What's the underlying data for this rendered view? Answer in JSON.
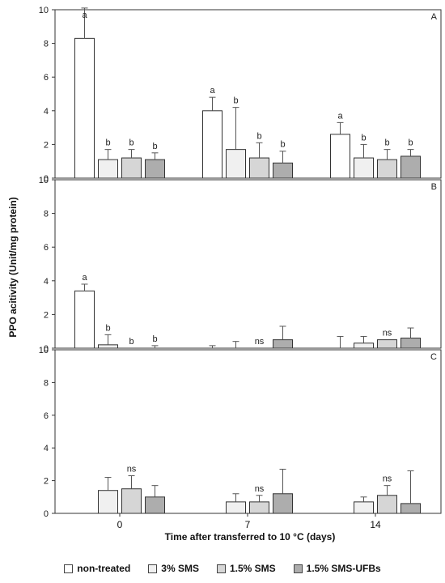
{
  "chart_data": {
    "type": "bar",
    "xlabel": "Time after transferred to 10 °C (days)",
    "ylabel": "PPO acitivity (Unit/mg protein)",
    "categories": [
      "0",
      "7",
      "14"
    ],
    "ylim": [
      0,
      10
    ],
    "yticks": [
      0,
      2,
      4,
      6,
      8,
      10
    ],
    "legend_position": "bottom",
    "series": [
      {
        "name": "non-treated",
        "color": "#ffffff"
      },
      {
        "name": "3% SMS",
        "color": "#f0f0f0"
      },
      {
        "name": "1.5% SMS",
        "color": "#d6d6d6"
      },
      {
        "name": "1.5% SMS-UFBs",
        "color": "#adadad"
      }
    ],
    "panels": [
      {
        "label": "A",
        "values": [
          [
            8.3,
            4.0,
            2.6
          ],
          [
            1.1,
            1.7,
            1.2
          ],
          [
            1.2,
            1.2,
            1.1
          ],
          [
            1.1,
            0.9,
            1.3
          ]
        ],
        "errors": [
          [
            1.8,
            0.8,
            0.7
          ],
          [
            0.6,
            2.5,
            0.8
          ],
          [
            0.5,
            0.9,
            0.6
          ],
          [
            0.4,
            0.7,
            0.4
          ]
        ],
        "significance": [
          [
            "a",
            "a",
            "a"
          ],
          [
            "b",
            "b",
            "b"
          ],
          [
            "b",
            "b",
            "b"
          ],
          [
            "b",
            "b",
            "b"
          ]
        ]
      },
      {
        "label": "B",
        "values": [
          [
            3.4,
            0.0,
            0.0
          ],
          [
            0.2,
            0.0,
            0.3
          ],
          [
            0.0,
            0.0,
            0.5
          ],
          [
            0.0,
            0.5,
            0.6
          ]
        ],
        "errors": [
          [
            0.4,
            0.15,
            0.7
          ],
          [
            0.6,
            0.4,
            0.4
          ],
          [
            0.0,
            0.0,
            0.0
          ],
          [
            0.15,
            0.8,
            0.6
          ]
        ],
        "significance": [
          [
            "a",
            "",
            ""
          ],
          [
            "b",
            "",
            ""
          ],
          [
            "b",
            "ns",
            "ns"
          ],
          [
            "b",
            "",
            ""
          ]
        ]
      },
      {
        "label": "C",
        "values": [
          [
            0.0,
            0.0,
            0.0
          ],
          [
            1.4,
            0.7,
            0.7
          ],
          [
            1.5,
            0.7,
            1.1
          ],
          [
            1.0,
            1.2,
            0.6
          ]
        ],
        "errors": [
          [
            0.0,
            0.0,
            0.0
          ],
          [
            0.8,
            0.5,
            0.3
          ],
          [
            0.8,
            0.4,
            0.6
          ],
          [
            0.7,
            1.5,
            2.0
          ]
        ],
        "significance": [
          [
            "",
            "",
            ""
          ],
          [
            "",
            "",
            ""
          ],
          [
            "ns",
            "ns",
            "ns"
          ],
          [
            "",
            "",
            ""
          ]
        ]
      }
    ]
  }
}
